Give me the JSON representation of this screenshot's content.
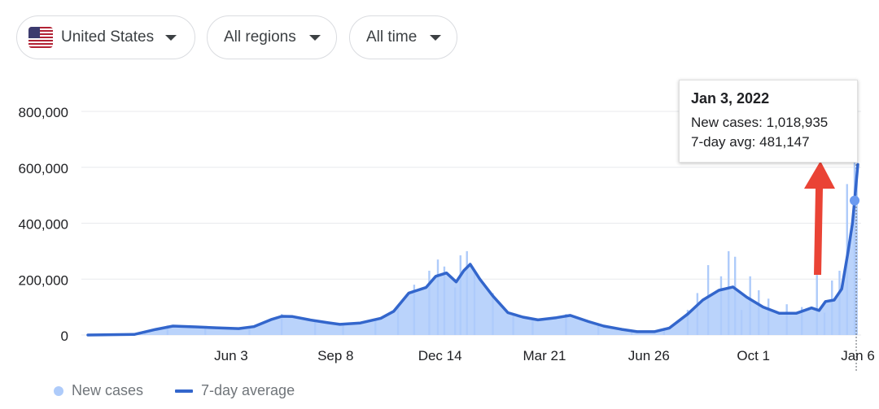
{
  "filters": {
    "country": {
      "label": "United States",
      "icon": "us-flag-icon"
    },
    "region": {
      "label": "All regions"
    },
    "time": {
      "label": "All time"
    }
  },
  "tooltip": {
    "date": "Jan 3, 2022",
    "new_cases_label": "New cases:",
    "new_cases_value": "1,018,935",
    "avg_label": "7-day avg:",
    "avg_value": "481,147"
  },
  "legend": {
    "new_cases": "New cases",
    "avg": "7-day average"
  },
  "colors": {
    "bars": "#aecbfa",
    "line": "#3366cc",
    "grid": "#e8eaed",
    "arrow": "#ea4335"
  },
  "chart_data": {
    "type": "area",
    "title": "",
    "xlabel": "",
    "ylabel": "",
    "y_ticks": [
      {
        "value": 0,
        "label": "0"
      },
      {
        "value": 200000,
        "label": "200,000"
      },
      {
        "value": 400000,
        "label": "400,000"
      },
      {
        "value": 600000,
        "label": "600,000"
      },
      {
        "value": 800000,
        "label": "800,000"
      }
    ],
    "ylim": [
      0,
      800000
    ],
    "x_range": [
      "2020-01-22",
      "2022-01-06"
    ],
    "x_ticks": [
      {
        "date": "2020-06-03",
        "label": "Jun 3"
      },
      {
        "date": "2020-09-08",
        "label": "Sep 8"
      },
      {
        "date": "2020-12-14",
        "label": "Dec 14"
      },
      {
        "date": "2021-03-21",
        "label": "Mar 21"
      },
      {
        "date": "2021-06-26",
        "label": "Jun 26"
      },
      {
        "date": "2021-10-01",
        "label": "Oct 1"
      },
      {
        "date": "2022-01-06",
        "label": "Jan 6"
      }
    ],
    "grid": true,
    "legend_position": "bottom-left",
    "highlight": {
      "date": "2022-01-03",
      "avg": 481147,
      "new_cases": 1018935
    },
    "series": [
      {
        "name": "7-day average",
        "style": "line",
        "points": [
          [
            "2020-01-22",
            0
          ],
          [
            "2020-03-05",
            2000
          ],
          [
            "2020-03-25",
            20000
          ],
          [
            "2020-04-10",
            32000
          ],
          [
            "2020-05-01",
            29000
          ],
          [
            "2020-05-20",
            26000
          ],
          [
            "2020-06-10",
            23000
          ],
          [
            "2020-06-24",
            30000
          ],
          [
            "2020-07-10",
            55000
          ],
          [
            "2020-07-20",
            67000
          ],
          [
            "2020-07-30",
            66000
          ],
          [
            "2020-08-15",
            54000
          ],
          [
            "2020-09-01",
            44000
          ],
          [
            "2020-09-12",
            38000
          ],
          [
            "2020-10-01",
            43000
          ],
          [
            "2020-10-20",
            60000
          ],
          [
            "2020-11-01",
            85000
          ],
          [
            "2020-11-15",
            150000
          ],
          [
            "2020-12-01",
            170000
          ],
          [
            "2020-12-10",
            210000
          ],
          [
            "2020-12-20",
            222000
          ],
          [
            "2020-12-29",
            190000
          ],
          [
            "2021-01-05",
            230000
          ],
          [
            "2021-01-11",
            253000
          ],
          [
            "2021-01-20",
            200000
          ],
          [
            "2021-02-01",
            140000
          ],
          [
            "2021-02-15",
            80000
          ],
          [
            "2021-03-01",
            64000
          ],
          [
            "2021-03-15",
            54000
          ],
          [
            "2021-04-01",
            62000
          ],
          [
            "2021-04-14",
            70000
          ],
          [
            "2021-05-01",
            48000
          ],
          [
            "2021-05-15",
            32000
          ],
          [
            "2021-06-01",
            20000
          ],
          [
            "2021-06-15",
            12000
          ],
          [
            "2021-07-01",
            12000
          ],
          [
            "2021-07-15",
            25000
          ],
          [
            "2021-08-01",
            75000
          ],
          [
            "2021-08-15",
            125000
          ],
          [
            "2021-08-30",
            160000
          ],
          [
            "2021-09-12",
            172000
          ],
          [
            "2021-09-25",
            135000
          ],
          [
            "2021-10-10",
            100000
          ],
          [
            "2021-10-25",
            78000
          ],
          [
            "2021-11-10",
            78000
          ],
          [
            "2021-11-24",
            97000
          ],
          [
            "2021-12-01",
            88000
          ],
          [
            "2021-12-07",
            120000
          ],
          [
            "2021-12-15",
            125000
          ],
          [
            "2021-12-22",
            165000
          ],
          [
            "2021-12-28",
            300000
          ],
          [
            "2022-01-01",
            400000
          ],
          [
            "2022-01-03",
            481147
          ],
          [
            "2022-01-06",
            610000
          ]
        ]
      },
      {
        "name": "New cases",
        "style": "bars",
        "points": [
          [
            "2020-03-15",
            5000
          ],
          [
            "2020-04-05",
            34000
          ],
          [
            "2020-05-10",
            28000
          ],
          [
            "2020-06-20",
            30000
          ],
          [
            "2020-07-20",
            75000
          ],
          [
            "2020-08-20",
            50000
          ],
          [
            "2020-09-15",
            42000
          ],
          [
            "2020-10-15",
            58000
          ],
          [
            "2020-11-05",
            100000
          ],
          [
            "2020-11-20",
            180000
          ],
          [
            "2020-12-04",
            230000
          ],
          [
            "2020-12-12",
            270000
          ],
          [
            "2020-12-18",
            245000
          ],
          [
            "2020-12-28",
            170000
          ],
          [
            "2021-01-02",
            285000
          ],
          [
            "2021-01-08",
            300000
          ],
          [
            "2021-01-15",
            230000
          ],
          [
            "2021-02-01",
            150000
          ],
          [
            "2021-02-20",
            75000
          ],
          [
            "2021-03-10",
            60000
          ],
          [
            "2021-04-10",
            75000
          ],
          [
            "2021-05-10",
            40000
          ],
          [
            "2021-06-10",
            18000
          ],
          [
            "2021-07-10",
            25000
          ],
          [
            "2021-08-01",
            90000
          ],
          [
            "2021-08-10",
            150000
          ],
          [
            "2021-08-20",
            250000
          ],
          [
            "2021-09-01",
            210000
          ],
          [
            "2021-09-08",
            300000
          ],
          [
            "2021-09-14",
            280000
          ],
          [
            "2021-09-20",
            90000
          ],
          [
            "2021-09-28",
            210000
          ],
          [
            "2021-10-06",
            160000
          ],
          [
            "2021-10-15",
            130000
          ],
          [
            "2021-11-01",
            110000
          ],
          [
            "2021-11-15",
            100000
          ],
          [
            "2021-11-29",
            215000
          ],
          [
            "2021-12-06",
            80000
          ],
          [
            "2021-12-13",
            195000
          ],
          [
            "2021-12-20",
            230000
          ],
          [
            "2021-12-27",
            540000
          ],
          [
            "2022-01-03",
            1018935
          ]
        ]
      }
    ]
  }
}
